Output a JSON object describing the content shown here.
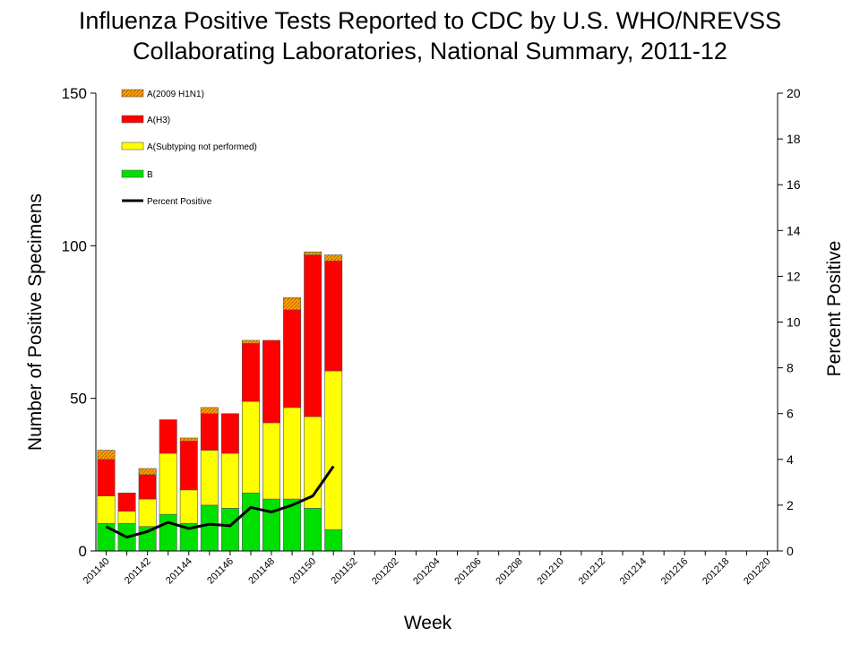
{
  "chart_data": {
    "type": "bar",
    "title": "Influenza Positive Tests Reported to CDC by U.S. WHO/NREVSS Collaborating Laboratories, National Summary, 2011-12",
    "x_label": "Week",
    "y_label": "Number of Positive Specimens",
    "y2_label": "Percent Positive",
    "stacked": true,
    "legend": "upper-left",
    "categories": [
      "201140",
      null,
      "201142",
      null,
      "201144",
      null,
      "201146",
      null,
      "201148",
      null,
      "201150",
      null,
      "201152",
      null,
      "201202",
      null,
      "201204",
      null,
      "201206",
      null,
      "201208",
      null,
      "201210",
      null,
      "201212",
      null,
      "201214",
      null,
      "201216",
      null,
      "201218",
      null,
      "201220"
    ],
    "series": [
      {
        "name": "A(2009 H1N1)",
        "color": "#ffa500",
        "values": [
          3,
          0,
          2,
          0,
          1,
          2,
          0,
          1,
          0,
          4,
          1,
          2,
          null,
          null,
          null,
          null,
          null,
          null,
          null,
          null,
          null,
          null,
          null,
          null,
          null,
          null,
          null,
          null,
          null,
          null,
          null,
          null,
          null
        ]
      },
      {
        "name": "A(H3)",
        "color": "#ff0000",
        "values": [
          12,
          6,
          8,
          11,
          16,
          12,
          13,
          19,
          27,
          32,
          53,
          36,
          null,
          null,
          null,
          null,
          null,
          null,
          null,
          null,
          null,
          null,
          null,
          null,
          null,
          null,
          null,
          null,
          null,
          null,
          null,
          null,
          null
        ]
      },
      {
        "name": "A(Subtyping not performed)",
        "color": "#ffff00",
        "values": [
          9,
          4,
          9,
          20,
          11,
          18,
          18,
          30,
          25,
          30,
          30,
          52,
          null,
          null,
          null,
          null,
          null,
          null,
          null,
          null,
          null,
          null,
          null,
          null,
          null,
          null,
          null,
          null,
          null,
          null,
          null,
          null,
          null
        ]
      },
      {
        "name": "B",
        "color": "#00e000",
        "values": [
          9,
          9,
          8,
          12,
          9,
          15,
          14,
          19,
          17,
          17,
          14,
          7,
          null,
          null,
          null,
          null,
          null,
          null,
          null,
          null,
          null,
          null,
          null,
          null,
          null,
          null,
          null,
          null,
          null,
          null,
          null,
          null,
          null
        ]
      },
      {
        "name": "Percent Positive",
        "type": "line",
        "axis": "y2",
        "color": "#000000",
        "values": [
          1.06,
          0.6,
          0.85,
          1.25,
          0.98,
          1.17,
          1.1,
          1.9,
          1.7,
          2.0,
          2.4,
          3.7,
          null,
          null,
          null,
          null,
          null,
          null,
          null,
          null,
          null,
          null,
          null,
          null,
          null,
          null,
          null,
          null,
          null,
          null,
          null,
          null,
          null
        ]
      }
    ],
    "ylim": [
      0,
      150
    ],
    "yticks": [
      0,
      50,
      100,
      150
    ],
    "y2lim": [
      0,
      20
    ],
    "y2ticks": [
      0,
      2,
      4,
      6,
      8,
      10,
      12,
      14,
      16,
      18,
      20
    ]
  }
}
